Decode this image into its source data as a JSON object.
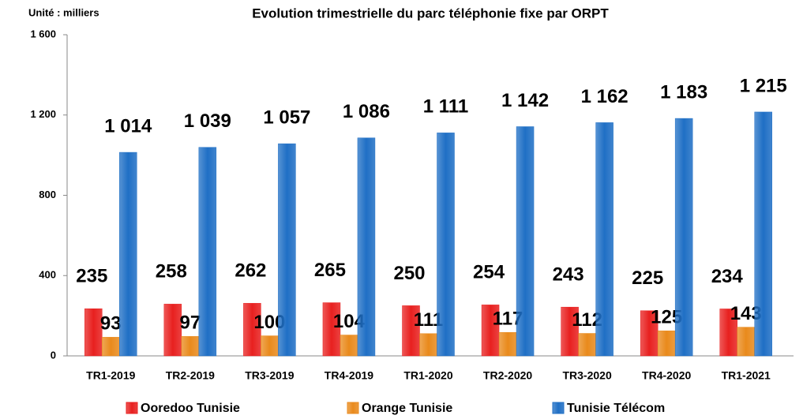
{
  "chart_data": {
    "type": "bar",
    "title": "Evolution trimestrielle du parc téléphonie fixe par ORPT",
    "unit_label": "Unité : milliers",
    "categories": [
      "TR1-2019",
      "TR2-2019",
      "TR3-2019",
      "TR4-2019",
      "TR1-2020",
      "TR2-2020",
      "TR3-2020",
      "TR4-2020",
      "TR1-2021"
    ],
    "series": [
      {
        "name": "Ooredoo Tunisie",
        "color": "#e8201f",
        "values": [
          235,
          258,
          262,
          265,
          250,
          254,
          243,
          225,
          234
        ]
      },
      {
        "name": "Orange Tunisie",
        "color": "#e98a1c",
        "values": [
          93,
          97,
          100,
          104,
          111,
          117,
          112,
          125,
          143
        ]
      },
      {
        "name": "Tunisie Télécom",
        "color": "#1f6fc5",
        "values": [
          1014,
          1039,
          1057,
          1086,
          1111,
          1142,
          1162,
          1183,
          1215
        ],
        "value_labels": [
          "1 014",
          "1 039",
          "1 057",
          "1 086",
          "1 111",
          "1 142",
          "1 162",
          "1 183",
          "1 215"
        ]
      }
    ],
    "ylim": [
      0,
      1600
    ],
    "yticks": [
      0,
      400,
      800,
      {
        "value": 1200,
        "label": "1 200"
      },
      {
        "value": 1600,
        "label": "1 600"
      }
    ],
    "grid": false,
    "legend": "bottom"
  }
}
